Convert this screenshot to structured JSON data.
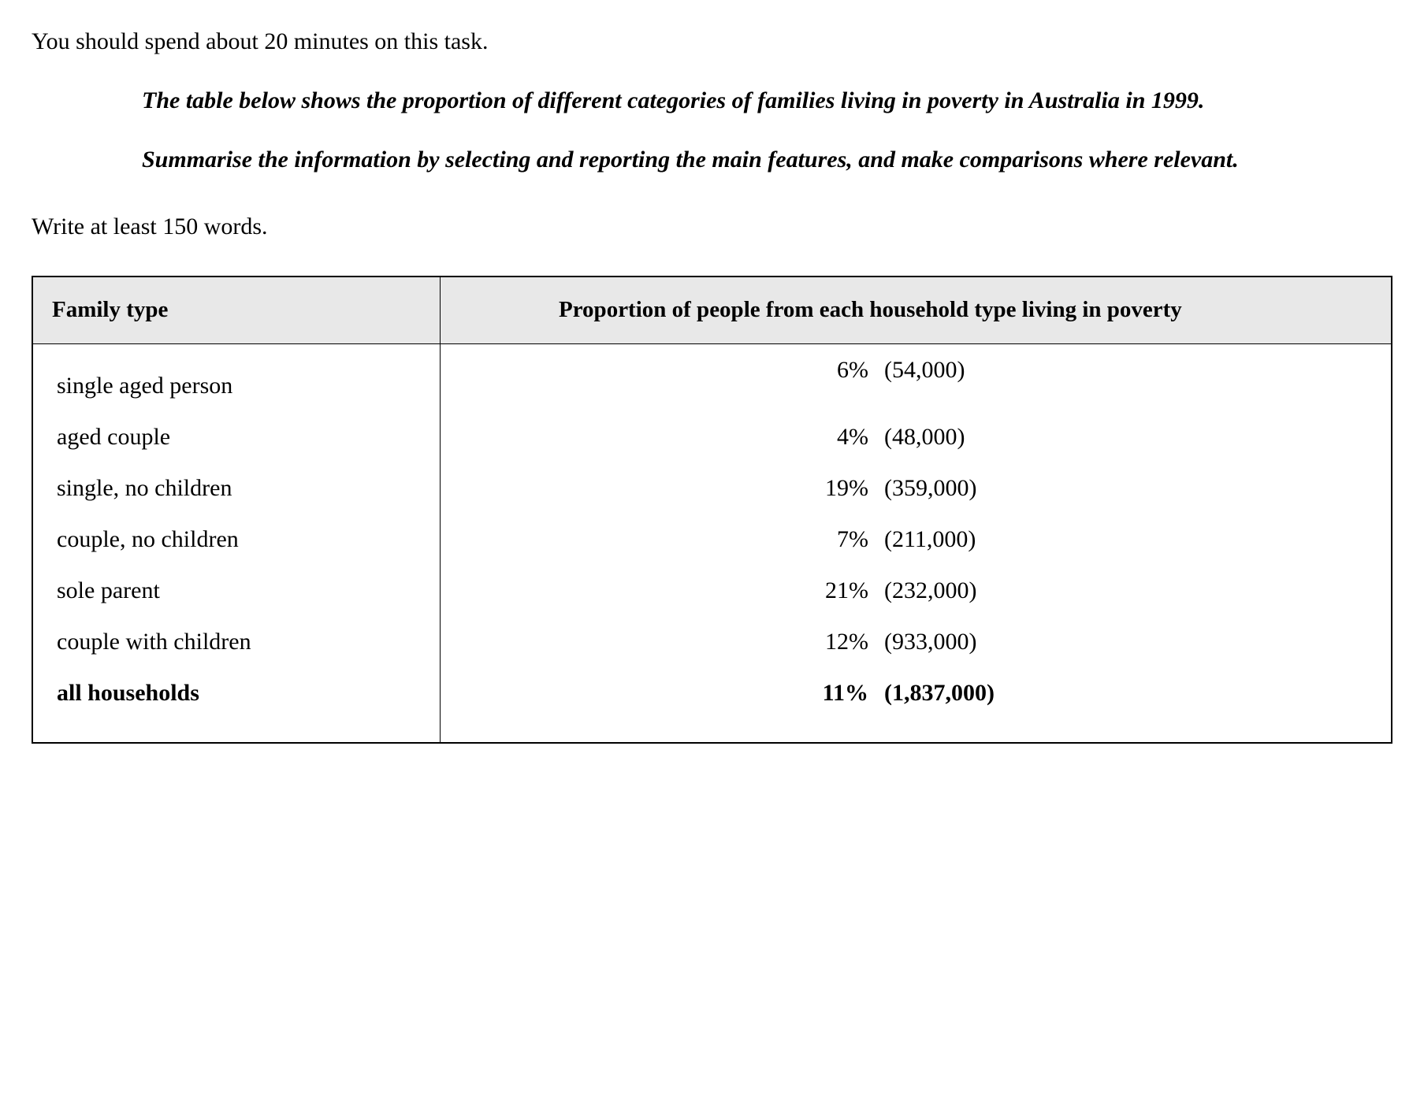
{
  "instructions": {
    "time_line": "You should spend about 20 minutes on this task.",
    "desc_para1": "The table below shows the proportion of different categories of families living in poverty in Australia in 1999.",
    "desc_para2": "Summarise the information by selecting and reporting the main features, and make comparisons where relevant.",
    "word_count": "Write at least 150 words."
  },
  "table": {
    "header": {
      "col1": "Family type",
      "col2": "Proportion of people from each household type living in poverty"
    },
    "rows": [
      {
        "family_type": "single aged person",
        "percent": "6%",
        "count": "(54,000)",
        "bold": false
      },
      {
        "family_type": "aged couple",
        "percent": "4%",
        "count": "(48,000)",
        "bold": false
      },
      {
        "family_type": "single, no children",
        "percent": "19%",
        "count": "(359,000)",
        "bold": false
      },
      {
        "family_type": "couple, no children",
        "percent": "7%",
        "count": "(211,000)",
        "bold": false
      },
      {
        "family_type": "sole parent",
        "percent": "21%",
        "count": "(232,000)",
        "bold": false
      },
      {
        "family_type": "couple with children",
        "percent": "12%",
        "count": "(933,000)",
        "bold": false
      },
      {
        "family_type": "all households",
        "percent": "11%",
        "count": "(1,837,000)",
        "bold": true
      }
    ],
    "styling": {
      "header_background": "#e8e8e8",
      "border_color": "#000000",
      "body_font": "Times New Roman",
      "body_fontsize_pt": 22,
      "header_fontsize_pt": 21,
      "text_color": "#000000",
      "page_background": "#ffffff"
    }
  }
}
